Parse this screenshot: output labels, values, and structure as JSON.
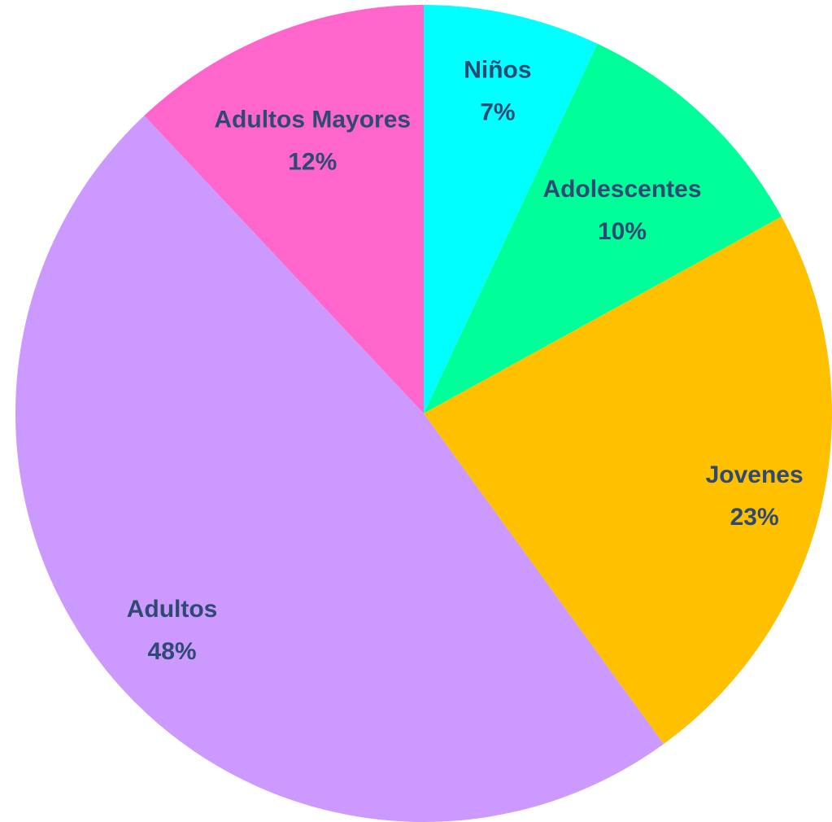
{
  "chart_data": {
    "type": "pie",
    "title": "",
    "start_angle_deg": 0,
    "direction": "clockwise",
    "slices": [
      {
        "label": "Niños",
        "value": 7,
        "value_label": "7%",
        "color": "#00ffff"
      },
      {
        "label": "Adolescentes",
        "value": 10,
        "value_label": "10%",
        "color": "#00ff99"
      },
      {
        "label": "Jovenes",
        "value": 23,
        "value_label": "23%",
        "color": "#ffc000"
      },
      {
        "label": "Adultos",
        "value": 48,
        "value_label": "48%",
        "color": "#cc99ff"
      },
      {
        "label": "Adultos Mayores",
        "value": 12,
        "value_label": "12%",
        "color": "#ff66cc"
      }
    ],
    "label_color": "#2e4a73"
  }
}
